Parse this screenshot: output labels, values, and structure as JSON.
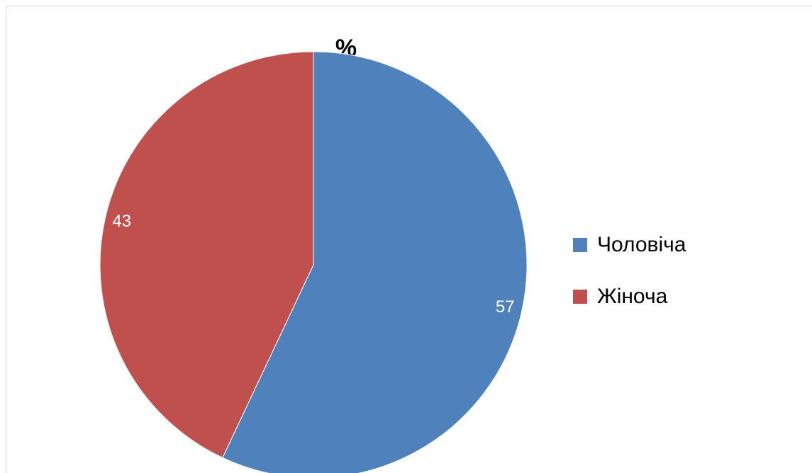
{
  "chart_data": {
    "type": "pie",
    "title": "%",
    "categories": [
      "Чоловіча",
      "Жіноча"
    ],
    "values": [
      57,
      43
    ],
    "colors": [
      "#4f81bd",
      "#c0504d"
    ],
    "legend": "right"
  }
}
